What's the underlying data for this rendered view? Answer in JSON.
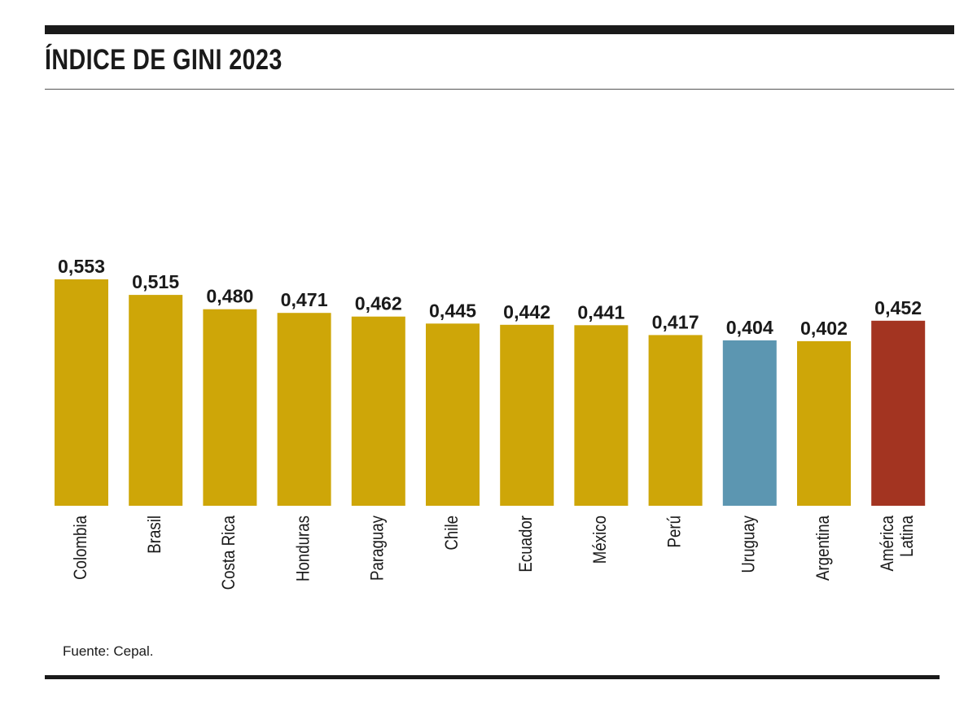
{
  "chart_data": {
    "type": "bar",
    "title": "ÍNDICE DE GINI 2023",
    "categories": [
      "Colombia",
      "Brasil",
      "Costa Rica",
      "Honduras",
      "Paraguay",
      "Chile",
      "Ecuador",
      "México",
      "Perú",
      "Uruguay",
      "Argentina",
      "América Latina"
    ],
    "category_lines": [
      [
        "Colombia"
      ],
      [
        "Brasil"
      ],
      [
        "Costa Rica"
      ],
      [
        "Honduras"
      ],
      [
        "Paraguay"
      ],
      [
        "Chile"
      ],
      [
        "Ecuador"
      ],
      [
        "México"
      ],
      [
        "Perú"
      ],
      [
        "Uruguay"
      ],
      [
        "Argentina"
      ],
      [
        "América",
        "Latina"
      ]
    ],
    "values": [
      0.553,
      0.515,
      0.48,
      0.471,
      0.462,
      0.445,
      0.442,
      0.441,
      0.417,
      0.404,
      0.402,
      0.452
    ],
    "value_labels": [
      "0,553",
      "0,515",
      "0,480",
      "0,471",
      "0,462",
      "0,445",
      "0,442",
      "0,441",
      "0,417",
      "0,404",
      "0,402",
      "0,452"
    ],
    "colors": [
      "#cea608",
      "#cea608",
      "#cea608",
      "#cea608",
      "#cea608",
      "#cea608",
      "#cea608",
      "#cea608",
      "#cea608",
      "#5c96b1",
      "#cea608",
      "#a33421"
    ],
    "ylim": [
      0,
      0.553
    ],
    "grid": false,
    "legend": "none",
    "source": "Fuente: Cepal."
  }
}
